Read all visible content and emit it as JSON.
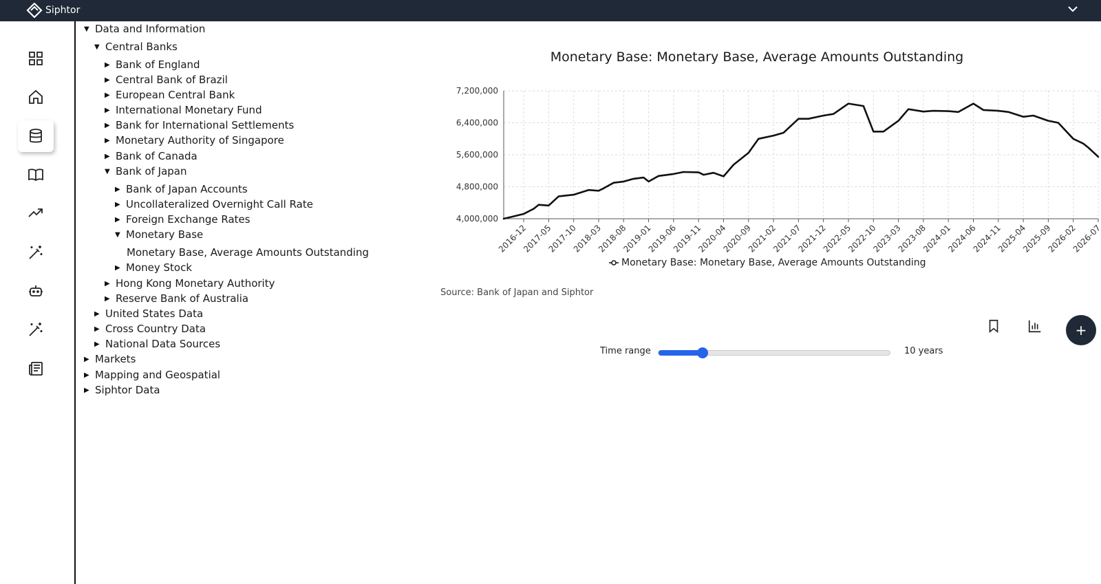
{
  "app": {
    "brand": "Siphtor"
  },
  "rail": {
    "icons": [
      "dashboard-icon",
      "home-icon",
      "database-icon",
      "book-icon",
      "trending-icon",
      "magic-wand-icon",
      "bot-icon",
      "magic-wand-icon",
      "newspaper-icon"
    ],
    "active_index": 2
  },
  "tree": {
    "n0": "Data and Information",
    "n1": "Central Banks",
    "n2": "Bank of England",
    "n3": "Central Bank of Brazil",
    "n4": "European Central Bank",
    "n5": "International Monetary Fund",
    "n6": "Bank for International Settlements",
    "n7": "Monetary Authority of Singapore",
    "n8": "Bank of Canada",
    "n9": "Bank of Japan",
    "n10": "Bank of Japan Accounts",
    "n11": "Uncollateralized Overnight Call Rate",
    "n12": "Foreign Exchange Rates",
    "n13": "Monetary Base",
    "n14": "Monetary Base, Average Amounts Outstanding",
    "n15": "Money Stock",
    "n16": "Hong Kong Monetary Authority",
    "n17": "Reserve Bank of Australia",
    "n18": "United States Data",
    "n19": "Cross Country Data",
    "n20": "National Data Sources",
    "n21": "Markets",
    "n22": "Mapping and Geospatial",
    "n23": "Siphtor Data"
  },
  "chart_data": {
    "type": "line",
    "title": "Monetary Base: Monetary Base, Average Amounts Outstanding",
    "xlabel": "",
    "ylabel": "",
    "ylim": [
      4000000,
      7200000
    ],
    "y_ticks": [
      "4,000,000",
      "4,800,000",
      "5,600,000",
      "6,400,000",
      "7,200,000"
    ],
    "x_ticks": [
      "2016-12",
      "2017-05",
      "2017-10",
      "2018-03",
      "2018-08",
      "2019-01",
      "2019-06",
      "2019-11",
      "2020-04",
      "2020-09",
      "2021-02",
      "2021-07",
      "2021-12",
      "2022-05",
      "2022-10",
      "2023-03",
      "2023-08",
      "2024-01",
      "2024-06",
      "2024-11",
      "2025-04",
      "2025-09",
      "2026-02",
      "2026-07"
    ],
    "grid": true,
    "legend": "bottom-center",
    "series": [
      {
        "name": "Monetary Base: Monetary Base, Average Amounts Outstanding",
        "color": "#111111",
        "x": [
          "2016-08",
          "2016-12",
          "2017-02",
          "2017-03",
          "2017-05",
          "2017-07",
          "2017-10",
          "2017-12",
          "2018-01",
          "2018-03",
          "2018-04",
          "2018-06",
          "2018-08",
          "2018-10",
          "2018-12",
          "2019-01",
          "2019-03",
          "2019-06",
          "2019-08",
          "2019-11",
          "2019-12",
          "2020-02",
          "2020-04",
          "2020-06",
          "2020-09",
          "2020-11",
          "2021-02",
          "2021-04",
          "2021-07",
          "2021-09",
          "2021-12",
          "2022-02",
          "2022-05",
          "2022-08",
          "2022-10",
          "2022-12",
          "2023-03",
          "2023-05",
          "2023-08",
          "2023-10",
          "2024-01",
          "2024-03",
          "2024-06",
          "2024-08",
          "2024-11",
          "2025-01",
          "2025-04",
          "2025-06",
          "2025-09",
          "2025-11",
          "2026-02",
          "2026-04",
          "2026-05",
          "2026-07"
        ],
        "values": [
          4000000,
          4120000,
          4250000,
          4350000,
          4330000,
          4560000,
          4600000,
          4680000,
          4720000,
          4700000,
          4760000,
          4900000,
          4930000,
          5000000,
          5030000,
          4930000,
          5070000,
          5120000,
          5170000,
          5160000,
          5100000,
          5150000,
          5060000,
          5350000,
          5650000,
          6000000,
          6080000,
          6150000,
          6500000,
          6500000,
          6580000,
          6620000,
          6880000,
          6820000,
          6180000,
          6180000,
          6450000,
          6740000,
          6680000,
          6700000,
          6690000,
          6670000,
          6880000,
          6720000,
          6700000,
          6670000,
          6550000,
          6580000,
          6450000,
          6400000,
          6000000,
          5880000,
          5780000,
          5550000
        ]
      }
    ]
  },
  "source": "Source: Bank of Japan and Siphtor",
  "toolbar": {
    "bookmark": "bookmark-icon",
    "chart": "bar-chart-icon",
    "add": "+"
  },
  "time_range": {
    "label": "Time range",
    "value_text": "10 years",
    "fraction": 0.19
  }
}
